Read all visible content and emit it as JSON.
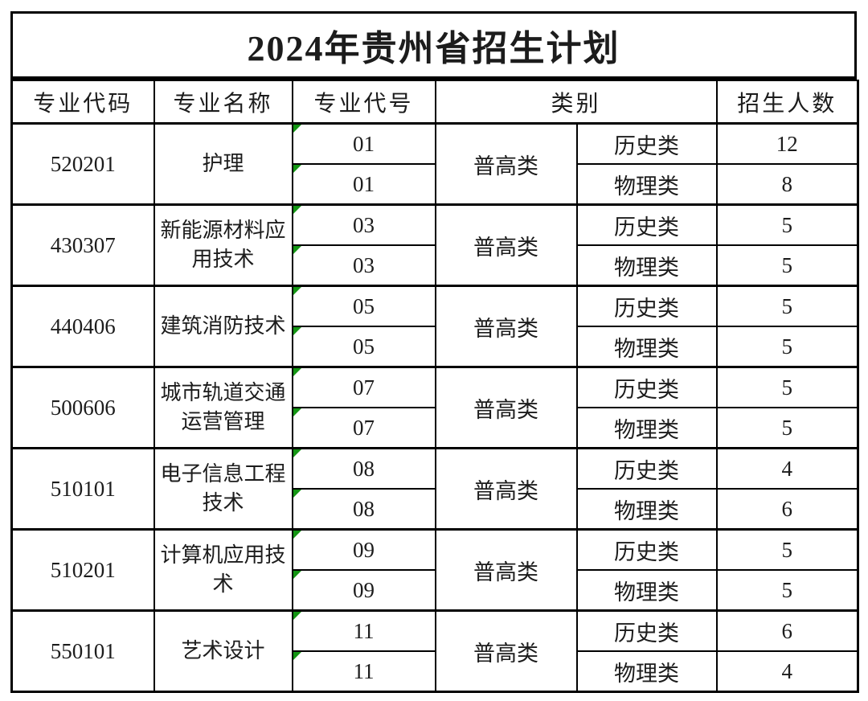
{
  "page": {
    "background": "#ffffff"
  },
  "title": "2024年贵州省招生计划",
  "colors": {
    "border": "#000000",
    "text": "#1c1c1c",
    "flag": "#149614",
    "background": "#ffffff"
  },
  "icons": {
    "cell_flag": "green-corner-triangle"
  },
  "table": {
    "headers": {
      "code": "专业代码",
      "name": "专业名称",
      "number": "专业代号",
      "category": "类别",
      "count": "招生人数"
    },
    "rows": [
      {
        "code": "520201",
        "name": "护理",
        "number1": "01",
        "number2": "01",
        "category": "普高类",
        "type1": "历史类",
        "count1": "12",
        "type2": "物理类",
        "count2": "8"
      },
      {
        "code": "430307",
        "name": "新能源材料应用技术",
        "number1": "03",
        "number2": "03",
        "category": "普高类",
        "type1": "历史类",
        "count1": "5",
        "type2": "物理类",
        "count2": "5"
      },
      {
        "code": "440406",
        "name": "建筑消防技术",
        "number1": "05",
        "number2": "05",
        "category": "普高类",
        "type1": "历史类",
        "count1": "5",
        "type2": "物理类",
        "count2": "5"
      },
      {
        "code": "500606",
        "name": "城市轨道交通运营管理",
        "number1": "07",
        "number2": "07",
        "category": "普高类",
        "type1": "历史类",
        "count1": "5",
        "type2": "物理类",
        "count2": "5"
      },
      {
        "code": "510101",
        "name": "电子信息工程技术",
        "number1": "08",
        "number2": "08",
        "category": "普高类",
        "type1": "历史类",
        "count1": "4",
        "type2": "物理类",
        "count2": "6"
      },
      {
        "code": "510201",
        "name": "计算机应用技术",
        "number1": "09",
        "number2": "09",
        "category": "普高类",
        "type1": "历史类",
        "count1": "5",
        "type2": "物理类",
        "count2": "5"
      },
      {
        "code": "550101",
        "name": "艺术设计",
        "number1": "11",
        "number2": "11",
        "category": "普高类",
        "type1": "历史类",
        "count1": "6",
        "type2": "物理类",
        "count2": "4"
      }
    ]
  }
}
